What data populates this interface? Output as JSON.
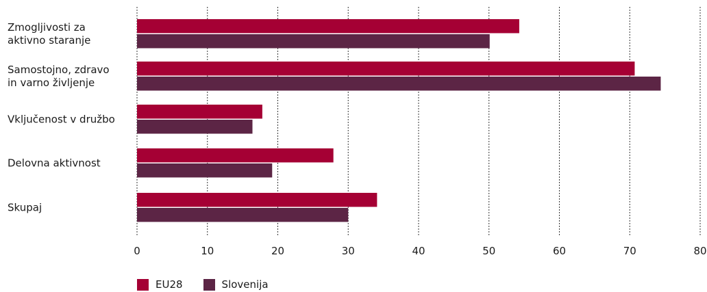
{
  "chart_data": {
    "type": "bar",
    "orientation": "horizontal",
    "categories": [
      [
        "Zmogljivosti za",
        "aktivno staranje"
      ],
      [
        "Samostojno, zdravo",
        "in varno življenje"
      ],
      [
        "Vključenost v družbo"
      ],
      [
        "Delovna aktivnost"
      ],
      [
        "Skupaj"
      ]
    ],
    "series": [
      {
        "name": "EU28",
        "values": [
          54.3,
          70.7,
          17.8,
          27.9,
          34.1
        ],
        "color": "#a50034"
      },
      {
        "name": "Slovenija",
        "values": [
          50.1,
          74.4,
          16.4,
          19.2,
          30.0
        ],
        "color": "#5c2545"
      }
    ],
    "xlim": [
      0,
      80
    ],
    "xticks": [
      "0",
      "10",
      "20",
      "30",
      "40",
      "50",
      "60",
      "70",
      "80"
    ],
    "grid": true,
    "legend_position": "bottom-left"
  },
  "legend": [
    {
      "label": "EU28",
      "color": "#a50034"
    },
    {
      "label": "Slovenija",
      "color": "#5c2545"
    }
  ]
}
